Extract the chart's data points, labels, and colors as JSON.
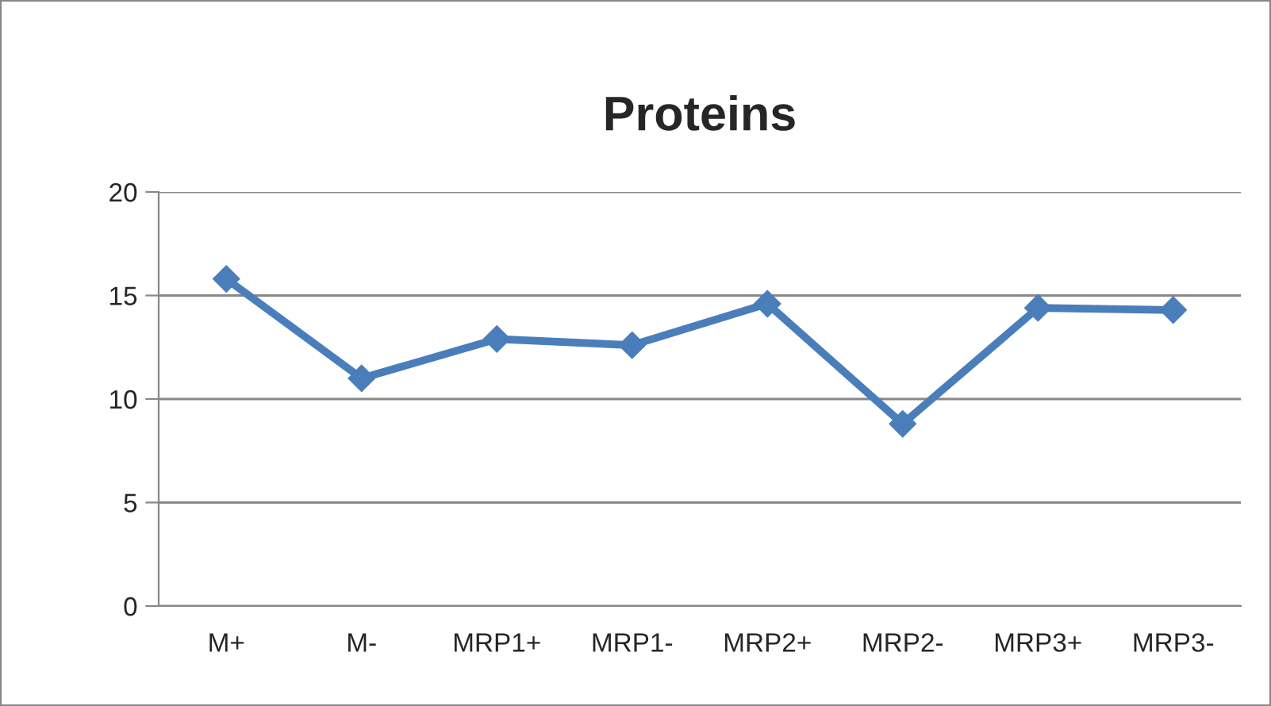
{
  "chart_data": {
    "type": "line",
    "title": "Proteins",
    "categories": [
      "M+",
      "M-",
      "MRP1+",
      "MRP1-",
      "MRP2+",
      "MRP2-",
      "MRP3+",
      "MRP3-"
    ],
    "series": [
      {
        "color": "#4a7ebb",
        "values": [
          15.8,
          11.0,
          12.9,
          12.6,
          14.6,
          8.8,
          14.4,
          14.3
        ]
      }
    ],
    "ylim": [
      0,
      20
    ],
    "yticks": [
      0,
      5,
      10,
      15,
      20
    ],
    "grid": "y",
    "marker": "diamond",
    "line_style": "solid",
    "legend": false
  }
}
